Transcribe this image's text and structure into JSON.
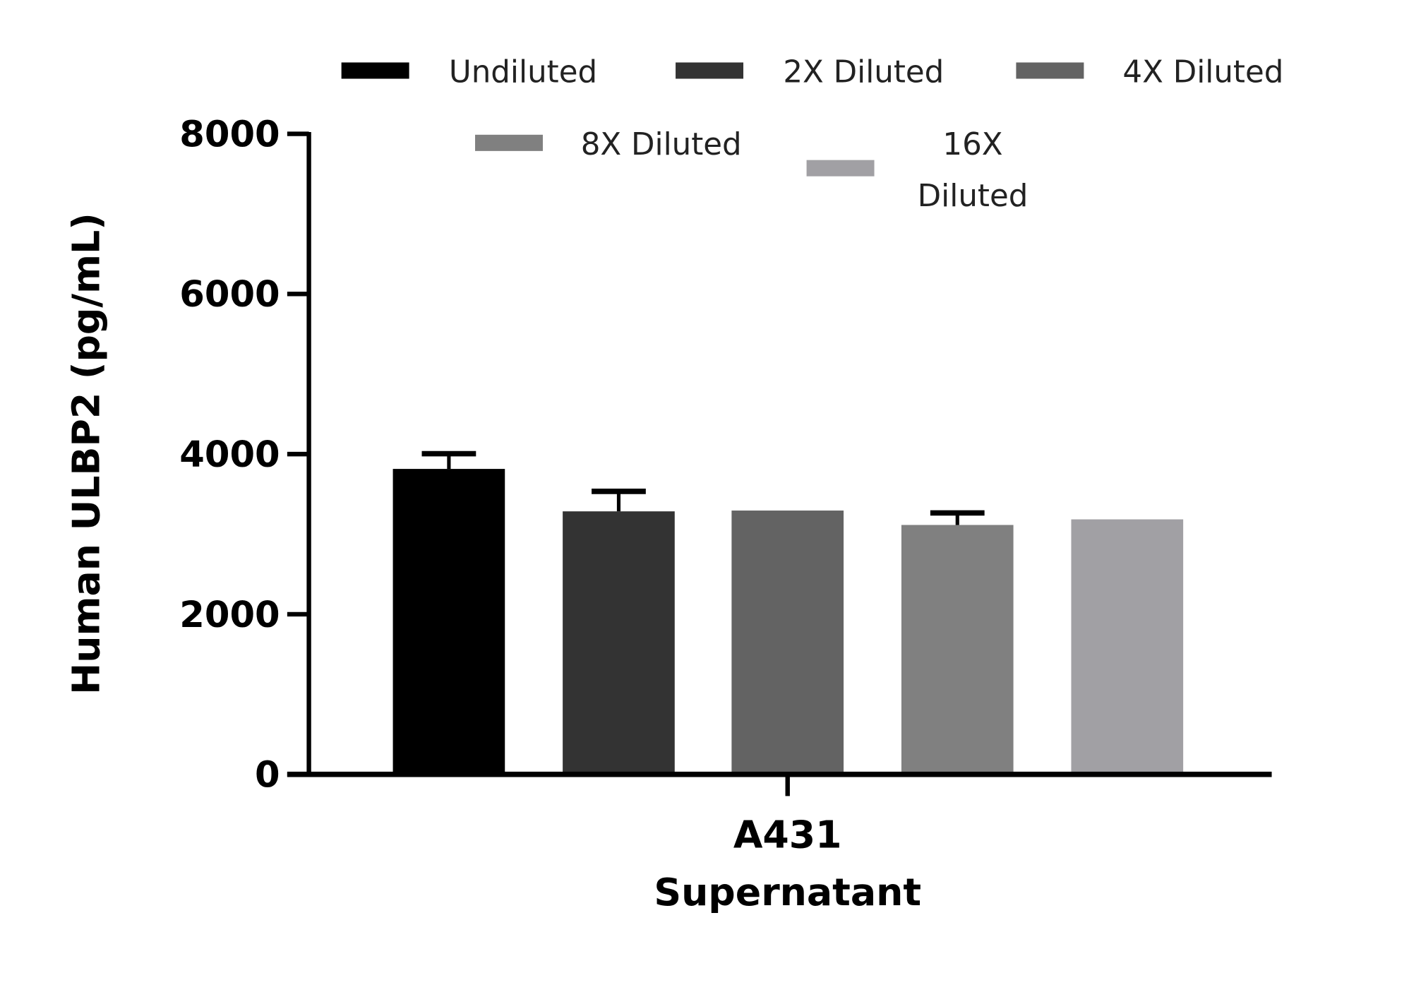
{
  "chart_data": {
    "type": "bar",
    "title": "",
    "ylabel": "Human ULBP2 (pg/mL)",
    "xlabel_lines": [
      "A431",
      "Supernatant"
    ],
    "categories": [
      "A431 Supernatant"
    ],
    "ylim": [
      0,
      8000
    ],
    "yticks": [
      "0",
      "2000",
      "4000",
      "6000",
      "8000"
    ],
    "grid": false,
    "legend_placement": "top",
    "series": [
      {
        "name": "Undiluted",
        "value": 3815,
        "error": 190,
        "color": "#000000"
      },
      {
        "name": "2X Diluted",
        "value": 3285,
        "error": 250,
        "color": "#333333"
      },
      {
        "name": "4X Diluted",
        "value": 3295,
        "error": 0,
        "color": "#636363"
      },
      {
        "name": "8X Diluted",
        "value": 3115,
        "error": 150,
        "color": "#808080"
      },
      {
        "name": "16X Diluted",
        "value": 3185,
        "error": 0,
        "color": "#a1a0a4"
      }
    ],
    "legend_text": [
      [
        "Undiluted"
      ],
      [
        "2X Diluted"
      ],
      [
        "4X Diluted"
      ],
      [
        "8X Diluted"
      ],
      [
        "16X",
        "Diluted"
      ]
    ]
  }
}
